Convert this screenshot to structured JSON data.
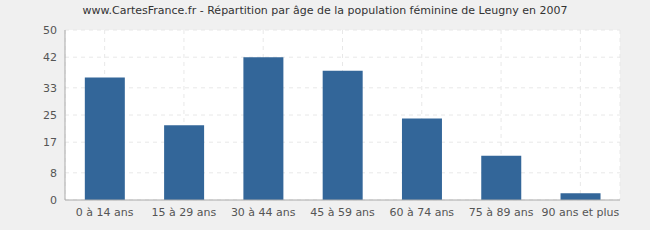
{
  "chart_data": {
    "type": "bar",
    "title": "www.CartesFrance.fr - Répartition par âge de la population féminine de Leugny en 2007",
    "categories": [
      "0 à 14 ans",
      "15 à 29 ans",
      "30 à 44 ans",
      "45 à 59 ans",
      "60 à 74 ans",
      "75 à 89 ans",
      "90 ans et plus"
    ],
    "values": [
      36,
      22,
      42,
      38,
      24,
      13,
      2
    ],
    "color": "#336699",
    "ylim": [
      0,
      50
    ],
    "yticks": [
      0,
      8,
      17,
      25,
      33,
      42,
      50
    ],
    "grid": true
  }
}
